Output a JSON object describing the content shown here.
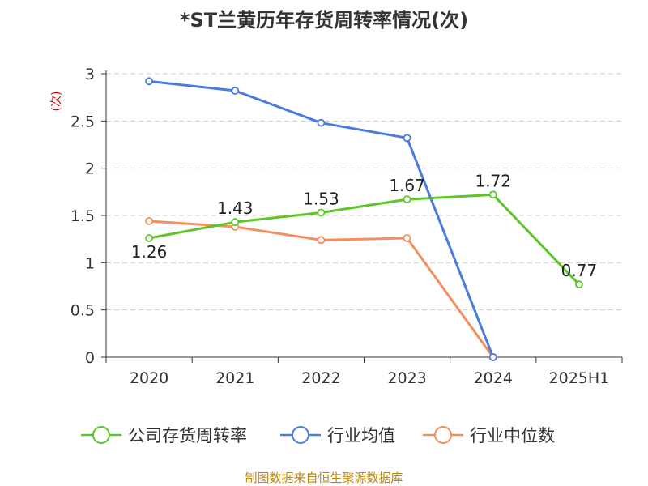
{
  "chart_data": {
    "type": "line",
    "title": "*ST兰黄历年存货周转率情况(次)",
    "ylabel": "(次)",
    "xlabel": "",
    "categories": [
      "2020",
      "2021",
      "2022",
      "2023",
      "2024",
      "2025H1"
    ],
    "ylim": [
      0,
      3
    ],
    "yticks": [
      "0",
      "0.5",
      "1",
      "1.5",
      "2",
      "2.5",
      "3"
    ],
    "grid": "horizontal-dashed",
    "legend_position": "bottom",
    "series": [
      {
        "name": "公司存货周转率",
        "color": "#5dc52a",
        "values": [
          1.26,
          1.43,
          1.53,
          1.67,
          1.72,
          0.77
        ],
        "labels": [
          "1.26",
          "1.43",
          "1.53",
          "1.67",
          "1.72",
          "0.77"
        ]
      },
      {
        "name": "行业均值",
        "color": "#4a7be0",
        "values": [
          2.92,
          2.82,
          2.48,
          2.32,
          0.0,
          null
        ],
        "labels": null
      },
      {
        "name": "行业中位数",
        "color": "#f58d5d",
        "values": [
          1.44,
          1.38,
          1.24,
          1.26,
          0.0,
          null
        ],
        "labels": null
      }
    ]
  },
  "source": "制图数据来自恒生聚源数据库"
}
